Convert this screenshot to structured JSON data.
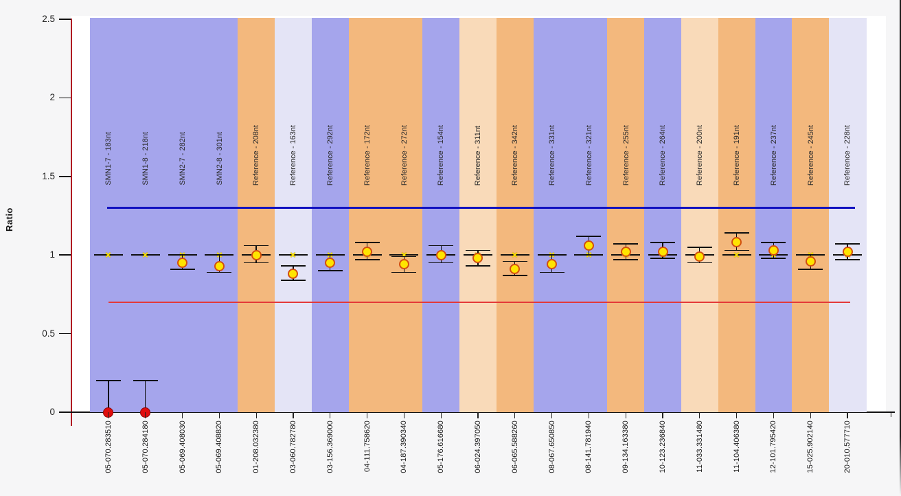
{
  "page": {
    "background": "#f6f6f7"
  },
  "y_axis": {
    "label": "Ratio",
    "ticks": [
      {
        "label": "2.5",
        "value": 2.5
      },
      {
        "label": "2",
        "value": 2.0
      },
      {
        "label": "1.5",
        "value": 1.5
      },
      {
        "label": "1",
        "value": 1.0
      },
      {
        "label": "0.5",
        "value": 0.5
      },
      {
        "label": "0",
        "value": 0.0
      }
    ]
  },
  "colors": {
    "band_purple": "#a5a5ec",
    "band_orange": "#f3b87d",
    "band_lavender": "#e4e4f6",
    "band_peach": "#f9dab9",
    "upper_threshold": "#1212c0",
    "lower_threshold": "#e43939",
    "axis_red": "#b01622",
    "point_yellow_fill": "#ffe400",
    "point_yellow_border": "#d24e10",
    "point_red_fill": "#e00d0d",
    "expected_marker_yellow": "#ffe400"
  },
  "chart_data": {
    "type": "scatter",
    "title": "",
    "xlabel": "",
    "ylabel": "Ratio",
    "ylim": [
      0,
      2.5
    ],
    "grid": false,
    "upper_threshold": 1.3,
    "lower_threshold": 0.7,
    "expected_ratio": 1.0,
    "points": [
      {
        "probe": "SMN1-7 - 183nt",
        "sample": "05-070.283510",
        "ratio": 0.0,
        "err_lo": 0.0,
        "err_hi": 0.2,
        "band": "purple",
        "marker": "red"
      },
      {
        "probe": "SMN1-8 - 218nt",
        "sample": "05-070.284180",
        "ratio": 0.0,
        "err_lo": 0.0,
        "err_hi": 0.2,
        "band": "purple",
        "marker": "red"
      },
      {
        "probe": "SMN2-7 - 282nt",
        "sample": "05-069.408030",
        "ratio": 0.95,
        "err_lo": 0.91,
        "err_hi": 1.0,
        "band": "purple",
        "marker": "yellow"
      },
      {
        "probe": "SMN2-8 - 301nt",
        "sample": "05-069.408820",
        "ratio": 0.93,
        "err_lo": 0.89,
        "err_hi": 1.0,
        "band": "purple",
        "marker": "yellow"
      },
      {
        "probe": "Reference - 208nt",
        "sample": "01-208.032380",
        "ratio": 1.0,
        "err_lo": 0.95,
        "err_hi": 1.06,
        "band": "orange",
        "marker": "yellow"
      },
      {
        "probe": "Reference - 163nt",
        "sample": "03-060.782780",
        "ratio": 0.88,
        "err_lo": 0.84,
        "err_hi": 0.93,
        "band": "lavender",
        "marker": "yellow"
      },
      {
        "probe": "Reference - 292nt",
        "sample": "03-156.369000",
        "ratio": 0.95,
        "err_lo": 0.9,
        "err_hi": 1.0,
        "band": "purple",
        "marker": "yellow"
      },
      {
        "probe": "Reference - 172nt",
        "sample": "04-111.758620",
        "ratio": 1.02,
        "err_lo": 0.97,
        "err_hi": 1.08,
        "band": "orange",
        "marker": "yellow"
      },
      {
        "probe": "Reference - 272nt",
        "sample": "04-187.390340",
        "ratio": 0.94,
        "err_lo": 0.89,
        "err_hi": 0.99,
        "band": "orange",
        "marker": "yellow"
      },
      {
        "probe": "Reference - 154nt",
        "sample": "05-176.616680",
        "ratio": 1.0,
        "err_lo": 0.95,
        "err_hi": 1.06,
        "band": "purple",
        "marker": "yellow"
      },
      {
        "probe": "Reference - 311nt",
        "sample": "06-024.397050",
        "ratio": 0.98,
        "err_lo": 0.93,
        "err_hi": 1.03,
        "band": "peach",
        "marker": "yellow"
      },
      {
        "probe": "Reference - 342nt",
        "sample": "06-065.588260",
        "ratio": 0.91,
        "err_lo": 0.87,
        "err_hi": 0.96,
        "band": "orange",
        "marker": "yellow"
      },
      {
        "probe": "Reference - 331nt",
        "sample": "08-067.650850",
        "ratio": 0.94,
        "err_lo": 0.89,
        "err_hi": 1.0,
        "band": "purple",
        "marker": "yellow"
      },
      {
        "probe": "Reference - 321nt",
        "sample": "08-141.781940",
        "ratio": 1.06,
        "err_lo": 1.0,
        "err_hi": 1.12,
        "band": "purple",
        "marker": "yellow"
      },
      {
        "probe": "Reference - 255nt",
        "sample": "09-134.163380",
        "ratio": 1.02,
        "err_lo": 0.97,
        "err_hi": 1.07,
        "band": "orange",
        "marker": "yellow"
      },
      {
        "probe": "Reference - 264nt",
        "sample": "10-123.236840",
        "ratio": 1.02,
        "err_lo": 0.98,
        "err_hi": 1.08,
        "band": "purple",
        "marker": "yellow"
      },
      {
        "probe": "Reference - 200nt",
        "sample": "11-033.331480",
        "ratio": 0.99,
        "err_lo": 0.95,
        "err_hi": 1.05,
        "band": "peach",
        "marker": "yellow"
      },
      {
        "probe": "Reference - 191nt",
        "sample": "11-104.406380",
        "ratio": 1.08,
        "err_lo": 1.03,
        "err_hi": 1.14,
        "band": "orange",
        "marker": "yellow"
      },
      {
        "probe": "Reference - 237nt",
        "sample": "12-101.795420",
        "ratio": 1.03,
        "err_lo": 0.98,
        "err_hi": 1.08,
        "band": "purple",
        "marker": "yellow"
      },
      {
        "probe": "Reference - 245nt",
        "sample": "15-025.902140",
        "ratio": 0.96,
        "err_lo": 0.91,
        "err_hi": 1.0,
        "band": "orange",
        "marker": "yellow"
      },
      {
        "probe": "Reference - 228nt",
        "sample": "20-010.577710",
        "ratio": 1.02,
        "err_lo": 0.97,
        "err_hi": 1.07,
        "band": "lavender",
        "marker": "yellow"
      }
    ]
  }
}
